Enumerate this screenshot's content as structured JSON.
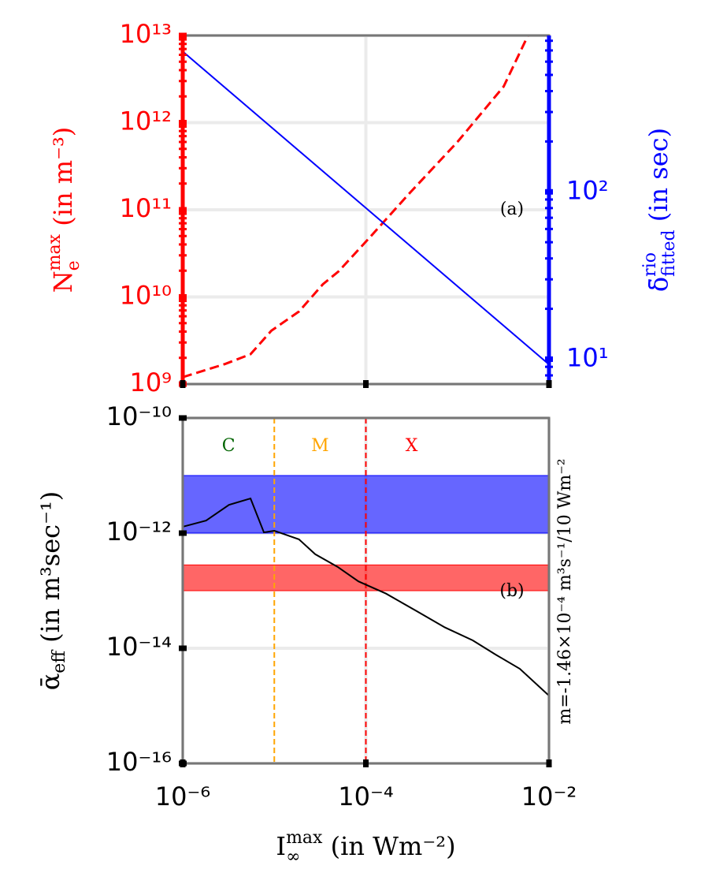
{
  "chart_data": [
    {
      "type": "line",
      "annotation": "(a)",
      "log_x": true,
      "log_y": true,
      "grid": true,
      "xlim": [
        1e-06,
        0.01
      ],
      "xticks": [
        1e-06,
        0.0001,
        0.01
      ],
      "ylim": [
        1000000000.0,
        10000000000000.0
      ],
      "ycolor": "red",
      "yticks": [
        {
          "value": 1000000000.0,
          "label": "10⁹"
        },
        {
          "value": 10000000000.0,
          "label": "10¹⁰"
        },
        {
          "value": 100000000000.0,
          "label": "10¹¹"
        },
        {
          "value": 1000000000000.0,
          "label": "10¹²"
        },
        {
          "value": 10000000000000.0,
          "label": "10¹³"
        }
      ],
      "y2lim": [
        7.1,
        860
      ],
      "y2color": "blue",
      "y2ticks": [
        {
          "value": 10,
          "label": "10¹"
        },
        {
          "value": 100,
          "label": "10²"
        }
      ],
      "ylabel": {
        "base": "N",
        "sub": "e",
        "sup": "max",
        "unit": " (in m⁻³)"
      },
      "y2label": {
        "base": "δ̄",
        "sub": "fitted",
        "sup": "rio",
        "unit": " (in sec)"
      },
      "series": [
        {
          "color": "red",
          "dash": true,
          "x": [
            1e-06,
            2.9e-06,
            5.5e-06,
            9.3e-06,
            1.86e-05,
            3.4e-05,
            5e-05,
            0.000112,
            0.0003,
            0.001,
            0.0032,
            0.0059
          ],
          "values": [
            1200000000.0,
            1700000000.0,
            2200000000.0,
            4100000000.0,
            6800000000.0,
            14000000000.0,
            19500000000.0,
            49000000000.0,
            155000000000.0,
            600000000000.0,
            2600000000000.0,
            10000000000000.0
          ]
        },
        {
          "color": "blue",
          "axis": "y2",
          "x": [
            1e-06,
            0.01
          ],
          "values": [
            690,
            9.3
          ]
        }
      ]
    },
    {
      "type": "line",
      "annotation": "(b)",
      "log_x": true,
      "log_y": true,
      "grid": true,
      "xlim": [
        1e-06,
        0.01
      ],
      "xticks": [
        {
          "value": 1e-06,
          "label": "10⁻⁶"
        },
        {
          "value": 0.0001,
          "label": "10⁻⁴"
        },
        {
          "value": 0.01,
          "label": "10⁻²"
        }
      ],
      "ylim": [
        1e-16,
        1e-10
      ],
      "ycolor": "black",
      "yticks": [
        {
          "value": 1e-16,
          "label": "10⁻¹⁶"
        },
        {
          "value": 1e-14,
          "label": "10⁻¹⁴"
        },
        {
          "value": 1e-12,
          "label": "10⁻¹²"
        },
        {
          "value": 1e-10,
          "label": "10⁻¹⁰"
        }
      ],
      "ylabel": {
        "base": "ᾱ",
        "sub": "eff",
        "sup": "",
        "unit": " (in m³sec⁻¹)"
      },
      "xlabel": {
        "base": "I",
        "sub": "∞",
        "sup": "max",
        "unit": " (in Wm⁻²)"
      },
      "note": "m=-1.46×10⁻⁴ m³s⁻¹/10 Wm⁻²",
      "bands": [
        {
          "color": "blue",
          "range": [
            1e-12,
            1e-11
          ]
        },
        {
          "color": "red",
          "range": [
            1e-13,
            2.8e-13
          ]
        }
      ],
      "vlines": [
        {
          "value": 1e-05,
          "color": "orange"
        },
        {
          "value": 0.0001,
          "color": "red"
        }
      ],
      "regions": [
        {
          "label": "C",
          "color": "darkgreen"
        },
        {
          "label": "M",
          "color": "orange"
        },
        {
          "label": "X",
          "color": "red"
        }
      ],
      "series": [
        {
          "color": "black",
          "x": [
            1e-06,
            1.8e-06,
            3.2e-06,
            5.5e-06,
            7.7e-06,
            1e-05,
            1.86e-05,
            2.8e-05,
            4.9e-05,
            8.3e-05,
            0.000166,
            0.00036,
            0.00073,
            0.00147,
            0.0026,
            0.0048,
            0.01
          ],
          "values": [
            1.29e-12,
            1.65e-12,
            3.1e-12,
            4e-12,
            1.03e-12,
            1.1e-12,
            7.8e-13,
            4.3e-13,
            2.6e-13,
            1.45e-13,
            8.9e-14,
            4.4e-14,
            2.3e-14,
            1.37e-14,
            7.8e-15,
            4.4e-15,
            1.5e-15
          ]
        }
      ]
    }
  ]
}
